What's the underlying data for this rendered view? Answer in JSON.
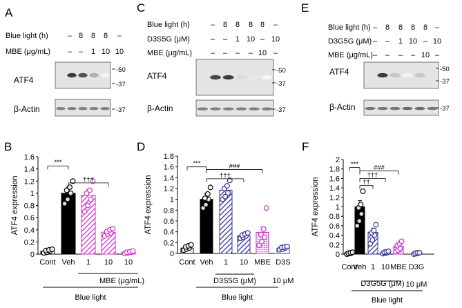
{
  "colors": {
    "black": "#000000",
    "purple": "#cc33cc",
    "darkblue": "#333399",
    "gray": "#808080",
    "blot_bg": "#e4e4e4"
  },
  "blots": [
    {
      "panel": "A",
      "cond_rows": [
        {
          "label": "Blue light (h)",
          "values": [
            "–",
            "8",
            "8",
            "8",
            "–"
          ]
        },
        {
          "label": "MBE (μg/mL)",
          "values": [
            "–",
            "–",
            "1",
            "10",
            "10"
          ]
        }
      ],
      "bands": [
        {
          "label": "ATF4",
          "markers": [
            "50",
            "37"
          ],
          "intensity": [
            0.0,
            0.85,
            0.75,
            0.35,
            0.05
          ]
        },
        {
          "label": "β-Actin",
          "markers": [
            "37"
          ],
          "intensity": [
            0.55,
            0.55,
            0.55,
            0.55,
            0.55
          ]
        }
      ]
    },
    {
      "panel": "C",
      "cond_rows": [
        {
          "label": "Blue light (h)",
          "values": [
            "–",
            "8",
            "8",
            "8",
            "8",
            "–"
          ]
        },
        {
          "label": "D3S5G (μM)",
          "values": [
            "–",
            "–",
            "1",
            "10",
            "–",
            "10"
          ]
        },
        {
          "label": "MBE (μg/mL)",
          "values": [
            "–",
            "–",
            "–",
            "–",
            "10",
            "–"
          ]
        }
      ],
      "bands": [
        {
          "label": "ATF4",
          "markers": [
            "50",
            "37"
          ],
          "intensity": [
            0.0,
            0.8,
            0.85,
            0.15,
            0.1,
            0.05
          ]
        },
        {
          "label": "β-Actin",
          "markers": [
            "37"
          ],
          "intensity": [
            0.55,
            0.55,
            0.55,
            0.55,
            0.55,
            0.55
          ]
        }
      ]
    },
    {
      "panel": "E",
      "cond_rows": [
        {
          "label": "Blue light (h)",
          "values": [
            "–",
            "8",
            "8",
            "8",
            "8",
            "–"
          ]
        },
        {
          "label": "D3G5G (μM)",
          "values": [
            "–",
            "–",
            "1",
            "10",
            "–",
            "10"
          ]
        },
        {
          "label": "MBE (μg/mL)",
          "values": [
            "–",
            "–",
            "–",
            "–",
            "10",
            "–"
          ]
        }
      ],
      "bands": [
        {
          "label": "ATF4",
          "markers": [
            "50",
            "37"
          ],
          "intensity": [
            0.0,
            0.85,
            0.25,
            0.05,
            0.25,
            0.0
          ]
        },
        {
          "label": "β-Actin",
          "markers": [
            "37"
          ],
          "intensity": [
            0.6,
            0.6,
            0.6,
            0.65,
            0.65,
            0.6
          ]
        }
      ]
    }
  ],
  "chart_data": [
    {
      "panel": "B",
      "type": "bar",
      "ylabel": "ATF4 expression",
      "ylim": [
        0,
        1.6
      ],
      "yticks": [
        "0",
        "0.2",
        "0.4",
        "0.6",
        "0.8",
        "1",
        "1.2",
        "1.4",
        "1.6"
      ],
      "categories": [
        "Cont",
        "Veh",
        "1",
        "10",
        "10"
      ],
      "values": [
        0.05,
        1.0,
        0.97,
        0.36,
        0.03
      ],
      "errors": [
        0.02,
        0.1,
        0.09,
        0.04,
        0.01
      ],
      "fills": [
        "white",
        "black",
        "purple-hatch",
        "purple-hatch",
        "purple-dot"
      ],
      "points": [
        [
          0.02,
          0.03,
          0.05,
          0.06,
          0.07,
          0.08
        ],
        [
          0.83,
          0.9,
          1.0,
          1.05,
          1.1,
          1.2
        ],
        [
          0.7,
          0.8,
          0.9,
          1.0,
          1.05,
          1.2
        ],
        [
          0.3,
          0.33,
          0.35,
          0.37,
          0.4,
          0.42
        ],
        [
          0.01,
          0.02,
          0.03,
          0.03,
          0.04,
          0.05
        ]
      ],
      "sig": [
        {
          "from": 0,
          "to": 1,
          "text": "***"
        },
        {
          "from": 1,
          "to": 3,
          "text": "†††"
        }
      ],
      "group_label": "MBE (μg/mL)",
      "blue_light_label": "Blue light"
    },
    {
      "panel": "D",
      "type": "bar",
      "ylabel": "ATF4 expression",
      "ylim": [
        0,
        1.8
      ],
      "yticks": [
        "0",
        "0.2",
        "0.4",
        "0.6",
        "0.8",
        "1",
        "1.2",
        "1.4",
        "1.6",
        "1.8"
      ],
      "categories": [
        "Cont",
        "Veh",
        "1",
        "10",
        "MBE",
        "D3S"
      ],
      "values": [
        0.1,
        1.0,
        1.17,
        0.33,
        0.39,
        0.1
      ],
      "errors": [
        0.02,
        0.1,
        0.08,
        0.03,
        0.1,
        0.02
      ],
      "fills": [
        "white",
        "black",
        "blue-hatch",
        "blue-hatch",
        "purple-dot",
        "white-blue"
      ],
      "points": [
        [
          0.06,
          0.08,
          0.1,
          0.12,
          0.14,
          0.16
        ],
        [
          0.84,
          0.9,
          1.0,
          1.02,
          1.1,
          1.22
        ],
        [
          1.0,
          1.05,
          1.12,
          1.2,
          1.25,
          1.35
        ],
        [
          0.28,
          0.3,
          0.32,
          0.34,
          0.36,
          0.38
        ],
        [
          0.15,
          0.22,
          0.3,
          0.35,
          0.45,
          0.84
        ],
        [
          0.07,
          0.08,
          0.1,
          0.11,
          0.12,
          0.13
        ]
      ],
      "sig": [
        {
          "from": 0,
          "to": 1,
          "text": "***"
        },
        {
          "from": 1,
          "to": 4,
          "text": "###"
        },
        {
          "from": 1,
          "to": 3,
          "text": "†††"
        }
      ],
      "group_label": "D3S5G (μM)",
      "extra_label": "10 μM",
      "blue_light_label": "Blue light"
    },
    {
      "panel": "F",
      "type": "bar",
      "ylabel": "ATF4 expression",
      "ylim": [
        0,
        2
      ],
      "yticks": [
        "0",
        "0.2",
        "0.4",
        "0.6",
        "0.8",
        "1",
        "1.2",
        "1.4",
        "1.6",
        "1.8",
        "2"
      ],
      "categories": [
        "Cont",
        "Veh",
        "1",
        "10",
        "MBE",
        "D3G"
      ],
      "values": [
        0.02,
        1.0,
        0.46,
        0.04,
        0.17,
        0.02
      ],
      "errors": [
        0.01,
        0.13,
        0.09,
        0.01,
        0.07,
        0.01
      ],
      "fills": [
        "white",
        "black",
        "blue-hatch",
        "blue-hatch",
        "purple-dot",
        "white-blue"
      ],
      "points": [
        [
          0.0,
          0.01,
          0.02,
          0.02,
          0.03,
          0.04
        ],
        [
          0.6,
          0.7,
          0.85,
          0.98,
          1.05,
          1.33
        ],
        [
          0.22,
          0.3,
          0.4,
          0.45,
          0.5,
          0.62
        ],
        [
          0.01,
          0.02,
          0.03,
          0.04,
          0.05,
          0.06
        ],
        [
          0.05,
          0.08,
          0.12,
          0.18,
          0.22,
          0.27
        ],
        [
          0.0,
          0.01,
          0.02,
          0.02,
          0.03,
          0.03
        ]
      ],
      "sig": [
        {
          "from": 0,
          "to": 1,
          "text": "***"
        },
        {
          "from": 1,
          "to": 4,
          "text": "###"
        },
        {
          "from": 1,
          "to": 3,
          "text": "†††"
        },
        {
          "from": 1,
          "to": 2,
          "text": "††"
        }
      ],
      "group_label": "D3G5G (μM)",
      "extra_label": "10 μM",
      "blue_light_label": "Blue light"
    }
  ]
}
